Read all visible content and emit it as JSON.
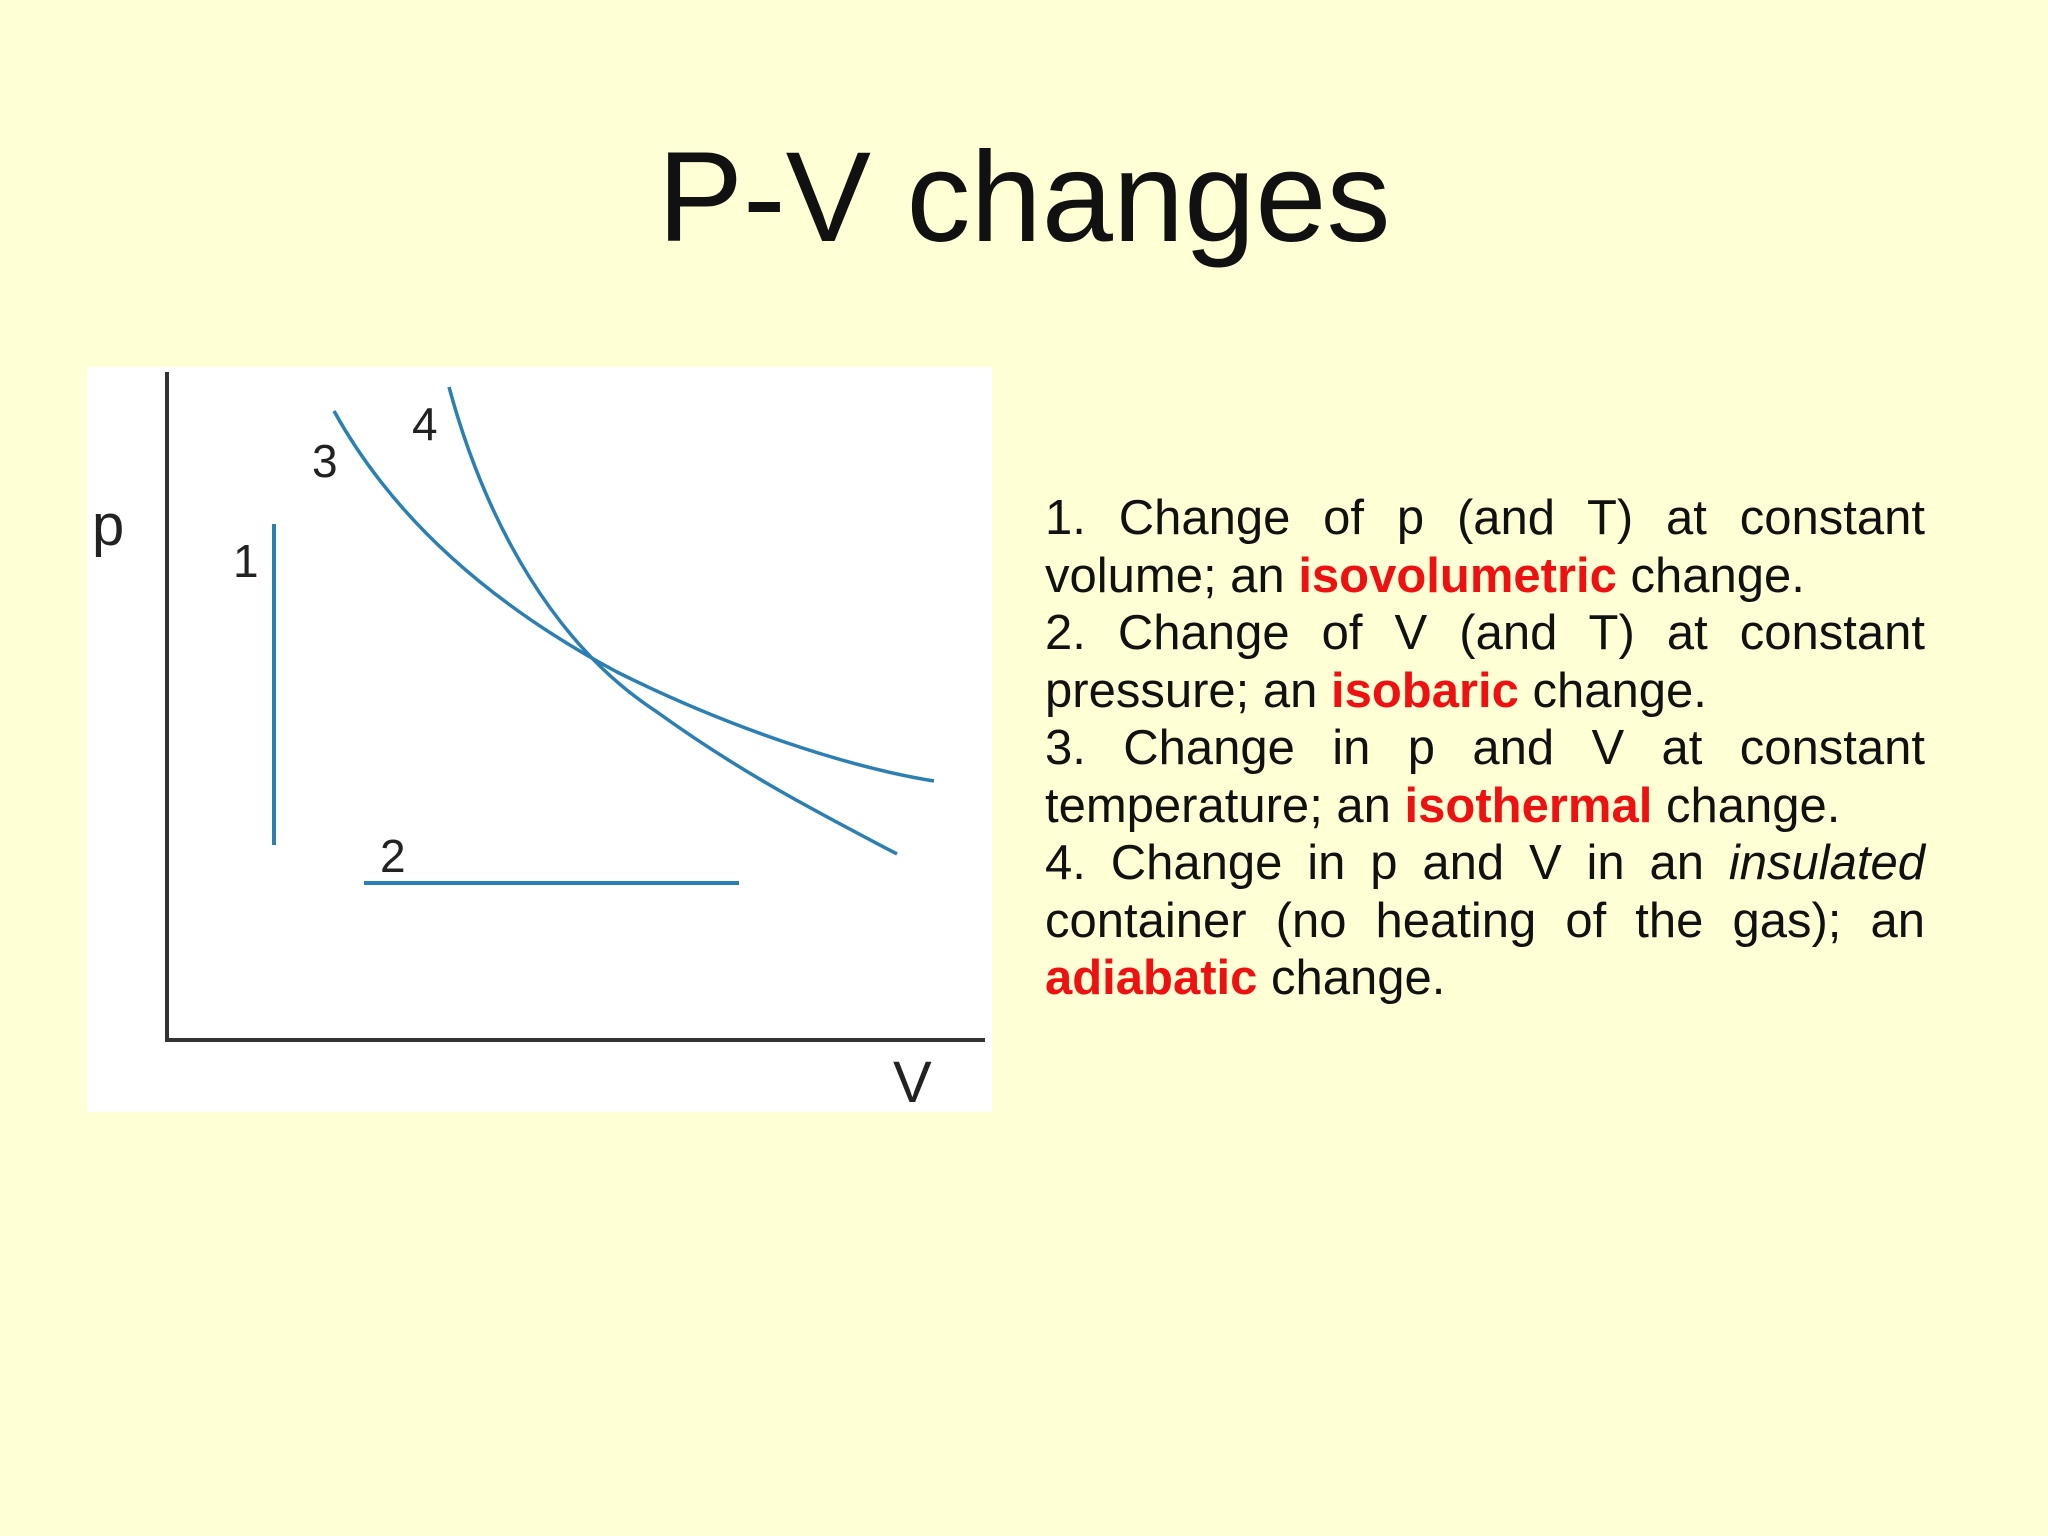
{
  "slide": {
    "title": "P-V changes"
  },
  "diagram": {
    "y_axis_label": "p",
    "x_axis_label": "V",
    "curve_color": "#2b7fb3",
    "axis_color": "#333333",
    "curves": [
      {
        "label": "1",
        "kind": "vertical line"
      },
      {
        "label": "2",
        "kind": "horizontal line"
      },
      {
        "label": "3",
        "kind": "isotherm curve"
      },
      {
        "label": "4",
        "kind": "adiabat curve"
      }
    ]
  },
  "items": [
    {
      "before": "1. Change of p (and T) at constant volume; an ",
      "term": "isovolumetric",
      "after": " change."
    },
    {
      "before": "2. Change of V (and T) at constant pressure; an ",
      "term": "isobaric",
      "after": " change."
    },
    {
      "before": "3. Change in p and V at constant temperature; an ",
      "term": "isothermal",
      "after": " change."
    },
    {
      "before": "4. Change in p and V in an ",
      "italic": "insulated",
      "middle": " container (no heating of the gas); an ",
      "term": "adiabatic",
      "after": " change."
    }
  ],
  "colors": {
    "background": "#ffffd6",
    "highlight": "#ee1111",
    "text": "#111111"
  }
}
